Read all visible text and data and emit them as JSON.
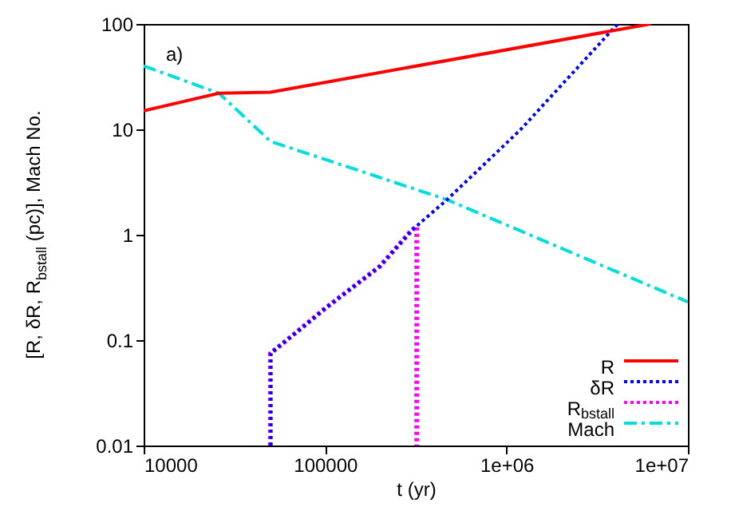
{
  "chart_data": {
    "type": "line",
    "xlabel": "t (yr)",
    "ylabel": "[R, δR, R$_{bstall}$ (pc)], Mach No.",
    "log": "xy",
    "grid": false,
    "legend": "bottom right",
    "xlim": [
      10000,
      10000000
    ],
    "ylim": [
      0.01,
      100
    ],
    "xticks": [
      10000,
      100000,
      {
        "value": 1000000,
        "label": "1e+06"
      },
      {
        "value": 10000000,
        "label": "1e+07"
      }
    ],
    "yticks": [
      0.01,
      0.1,
      1,
      10,
      100
    ],
    "annotations": [
      "a)"
    ],
    "series": [
      {
        "name": "R",
        "color": "#ff0000",
        "line_style": "solid",
        "x": [
          10000,
          26000,
          50000,
          6200000
        ],
        "values": [
          15,
          22,
          22.5,
          100
        ]
      },
      {
        "name": "δR",
        "color": "#0000ff",
        "line_style": "dotted",
        "x": [
          50000,
          50000,
          70000,
          100000,
          200000,
          300000,
          470000,
          1200000,
          4100000
        ],
        "values": [
          0.01,
          0.075,
          0.12,
          0.2,
          0.5,
          1.1,
          2.15,
          10,
          100
        ]
      },
      {
        "name": "R$_{bstall}$",
        "color": "#ff00ff",
        "line_style": "dotted",
        "x": [
          50000,
          50000,
          70000,
          100000,
          200000,
          300000,
          320000,
          320000
        ],
        "values": [
          0.01,
          0.075,
          0.12,
          0.2,
          0.5,
          1.1,
          1.2,
          0.01
        ]
      },
      {
        "name": "Mach",
        "color": "#00dddd",
        "line_style": "dashdot",
        "x": [
          10000,
          26000,
          50000,
          470000,
          10000000
        ],
        "values": [
          40,
          22,
          7.7,
          2.15,
          0.23
        ]
      }
    ]
  }
}
